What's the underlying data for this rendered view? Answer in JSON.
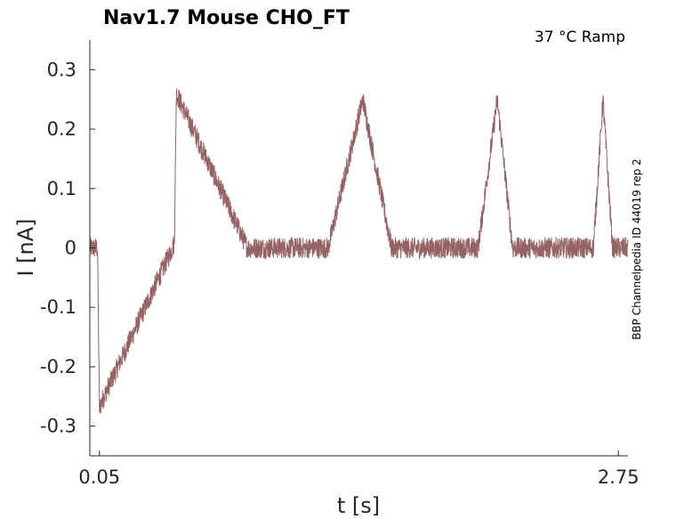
{
  "chart_data": {
    "type": "line",
    "title": "Nav1.7  Mouse  CHO_FT",
    "condition": "37 °C  Ramp",
    "side_label": "BBP Channelpedia ID 44019 rep 2",
    "xlabel": "t [s]",
    "ylabel": "I [nA]",
    "xlim": [
      0.0,
      2.8
    ],
    "ylim": [
      -0.35,
      0.35
    ],
    "xticks": [
      0.05,
      2.75
    ],
    "xtick_labels": [
      "0.05",
      "2.75"
    ],
    "yticks": [
      0.3,
      0.2,
      0.1,
      0,
      -0.1,
      -0.2,
      -0.3
    ],
    "ytick_labels": [
      "0.3",
      "0.2",
      "0.1",
      "0",
      "-0.1",
      "-0.2",
      "-0.3"
    ],
    "grid": false,
    "line_color": "#956363",
    "noise_amplitude": 0.018,
    "series": [
      {
        "x": [
          0.0,
          0.04,
          0.05,
          0.06,
          0.43,
          0.44,
          0.45,
          0.82,
          1.24,
          1.42,
          1.57,
          1.62,
          1.82,
          2.02,
          2.12,
          2.2,
          2.62,
          2.67,
          2.72,
          2.8
        ],
        "y": [
          0.0,
          0.0,
          -0.27,
          -0.26,
          0.0,
          0.01,
          0.26,
          0.0,
          0.0,
          0.25,
          0.0,
          0.0,
          0.0,
          0.0,
          0.25,
          0.0,
          0.0,
          0.25,
          0.0,
          0.0
        ]
      }
    ]
  }
}
